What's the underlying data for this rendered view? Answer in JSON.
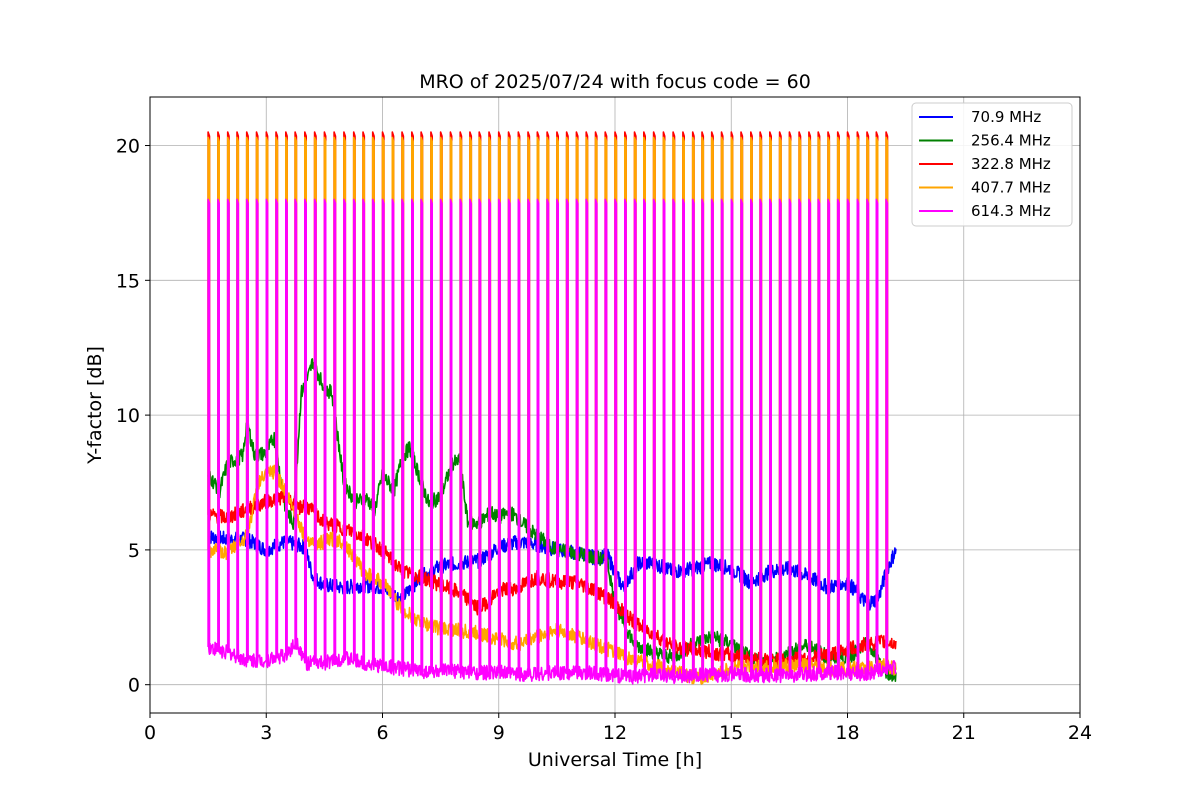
{
  "chart_data": {
    "type": "line",
    "title": "MRO of 2025/07/24 with focus code = 60",
    "xlabel": "Universal Time [h]",
    "ylabel": "Y-factor [dB]",
    "xlim": [
      0,
      24
    ],
    "ylim": [
      -1.05,
      21.8
    ],
    "xticks": [
      0,
      3,
      6,
      9,
      12,
      15,
      18,
      21,
      24
    ],
    "xtick_labels": [
      "0",
      "3",
      "6",
      "9",
      "12",
      "15",
      "18",
      "21",
      "24"
    ],
    "yticks": [
      0,
      5,
      10,
      15,
      20
    ],
    "ytick_labels": [
      "0",
      "5",
      "10",
      "15",
      "20"
    ],
    "grid": true,
    "legend_position": "top-right",
    "pulse_times": [
      1.5,
      1.75,
      2.0,
      2.25,
      2.5,
      2.75,
      3.0,
      3.25,
      3.5,
      3.75,
      4.0,
      4.25,
      4.5,
      4.75,
      5.0,
      5.25,
      5.5,
      5.75,
      6.0,
      6.25,
      6.5,
      6.75,
      7.0,
      7.25,
      7.5,
      7.75,
      8.0,
      8.25,
      8.5,
      8.75,
      9.0,
      9.25,
      9.5,
      9.75,
      10.0,
      10.25,
      10.5,
      10.75,
      11.0,
      11.25,
      11.5,
      11.75,
      12.0,
      12.25,
      12.5,
      12.75,
      13.0,
      13.25,
      13.5,
      13.75,
      14.0,
      14.25,
      14.5,
      14.75,
      15.0,
      15.25,
      15.5,
      15.75,
      16.0,
      16.25,
      16.5,
      16.75,
      17.0,
      17.25,
      17.5,
      17.75,
      18.0,
      18.25,
      18.5,
      18.75,
      19.0
    ],
    "series": [
      {
        "name": " 70.9 MHz",
        "color": "#0000ff",
        "baseline": {
          "x": [
            1.5,
            2.0,
            2.5,
            3.0,
            3.3,
            3.5,
            4.0,
            4.2,
            4.5,
            5.0,
            5.5,
            6.0,
            6.5,
            7.0,
            7.5,
            8.0,
            8.5,
            9.0,
            9.5,
            10.0,
            10.5,
            11.0,
            11.5,
            11.8,
            12.2,
            12.6,
            13.0,
            13.5,
            14.0,
            14.5,
            15.0,
            15.5,
            16.0,
            16.5,
            17.0,
            17.5,
            18.0,
            18.5,
            18.8,
            19.0,
            19.25
          ],
          "y": [
            5.5,
            5.4,
            5.4,
            5.0,
            5.2,
            5.3,
            5.1,
            4.0,
            3.7,
            3.6,
            3.7,
            3.6,
            3.2,
            4.0,
            4.4,
            4.5,
            4.6,
            5.1,
            5.3,
            5.2,
            5.0,
            4.9,
            4.7,
            4.8,
            3.6,
            4.5,
            4.5,
            4.2,
            4.3,
            4.5,
            4.3,
            3.8,
            4.2,
            4.3,
            4.0,
            3.6,
            3.8,
            3.0,
            3.2,
            4.2,
            5.0
          ]
        },
        "peak": null
      },
      {
        "name": "256.4 MHz",
        "color": "#008000",
        "baseline": {
          "x": [
            1.5,
            1.8,
            2.0,
            2.4,
            2.5,
            2.7,
            3.0,
            3.2,
            3.5,
            3.7,
            3.9,
            4.1,
            4.2,
            4.5,
            4.7,
            5.0,
            5.3,
            5.6,
            5.8,
            6.0,
            6.3,
            6.5,
            6.7,
            7.0,
            7.2,
            7.5,
            7.8,
            8.0,
            8.2,
            8.5,
            8.8,
            9.0,
            9.3,
            9.6,
            10.0,
            10.5,
            11.0,
            11.5,
            11.8,
            12.0,
            12.5,
            13.0,
            13.5,
            14.0,
            14.5,
            15.0,
            15.5,
            16.0,
            16.5,
            17.0,
            17.5,
            18.0,
            18.5,
            19.0,
            19.25
          ],
          "y": [
            7.8,
            7.2,
            8.2,
            8.5,
            9.8,
            8.5,
            8.6,
            9.2,
            6.5,
            6.0,
            10.8,
            11.5,
            12.0,
            11.0,
            10.8,
            7.5,
            6.8,
            6.9,
            6.5,
            7.8,
            7.2,
            8.4,
            8.8,
            7.5,
            6.7,
            7.0,
            8.2,
            8.3,
            6.0,
            6.0,
            6.4,
            6.2,
            6.4,
            6.0,
            5.5,
            5.0,
            4.9,
            4.7,
            4.6,
            3.0,
            1.5,
            1.2,
            1.0,
            1.5,
            1.8,
            1.5,
            1.0,
            0.8,
            1.2,
            1.5,
            1.0,
            1.0,
            1.5,
            0.5,
            0.3
          ]
        },
        "peak": null
      },
      {
        "name": "322.8 MHz",
        "color": "#ff0000",
        "baseline": {
          "x": [
            1.5,
            2.0,
            2.5,
            3.0,
            3.5,
            3.8,
            4.0,
            4.5,
            5.0,
            5.5,
            6.0,
            6.5,
            7.0,
            7.5,
            8.0,
            8.5,
            9.0,
            9.5,
            10.0,
            10.5,
            11.0,
            11.5,
            12.0,
            12.5,
            13.0,
            13.5,
            14.0,
            14.5,
            15.0,
            15.5,
            16.0,
            16.5,
            17.0,
            17.5,
            18.0,
            18.5,
            19.0,
            19.25
          ],
          "y": [
            6.3,
            6.2,
            6.5,
            6.8,
            7.0,
            6.5,
            6.7,
            6.0,
            5.8,
            5.5,
            5.0,
            4.2,
            4.0,
            3.7,
            3.4,
            2.8,
            3.5,
            3.6,
            4.0,
            3.8,
            3.8,
            3.5,
            3.0,
            2.3,
            1.9,
            1.4,
            1.3,
            1.2,
            1.1,
            1.0,
            0.9,
            0.9,
            1.0,
            1.1,
            1.3,
            1.5,
            1.6,
            1.5
          ]
        },
        "peak": 20.5
      },
      {
        "name": "407.7 MHz",
        "color": "#ffa500",
        "baseline": {
          "x": [
            1.5,
            2.0,
            2.5,
            2.8,
            3.0,
            3.2,
            3.5,
            4.0,
            4.3,
            4.7,
            5.0,
            5.5,
            6.0,
            6.5,
            7.0,
            7.5,
            8.0,
            8.5,
            9.0,
            9.5,
            10.0,
            10.5,
            11.0,
            11.5,
            12.0,
            12.5,
            13.0,
            13.5,
            14.0,
            14.5,
            15.0,
            15.5,
            16.0,
            16.5,
            17.0,
            17.5,
            18.0,
            18.5,
            19.0,
            19.25
          ],
          "y": [
            5.0,
            4.9,
            5.5,
            7.5,
            7.8,
            7.9,
            7.2,
            5.5,
            5.2,
            5.4,
            5.3,
            4.2,
            3.8,
            2.8,
            2.3,
            2.1,
            2.0,
            1.9,
            1.7,
            1.5,
            1.8,
            2.0,
            1.8,
            1.5,
            1.2,
            0.9,
            0.7,
            0.5,
            0.3,
            0.3,
            0.6,
            0.7,
            0.7,
            0.7,
            0.7,
            0.6,
            0.6,
            0.6,
            0.7,
            0.6
          ]
        },
        "peak": 20.3
      },
      {
        "name": "614.3 MHz",
        "color": "#ff00ff",
        "baseline": {
          "x": [
            1.5,
            2.0,
            2.5,
            3.0,
            3.5,
            3.8,
            4.0,
            4.5,
            5.0,
            5.5,
            6.0,
            6.5,
            7.0,
            7.5,
            8.0,
            8.5,
            9.0,
            9.5,
            10.0,
            10.5,
            11.0,
            11.5,
            12.0,
            12.5,
            13.0,
            13.5,
            14.0,
            14.5,
            15.0,
            15.5,
            16.0,
            16.5,
            17.0,
            17.5,
            18.0,
            18.5,
            19.0,
            19.25
          ],
          "y": [
            1.4,
            1.2,
            0.9,
            0.9,
            1.1,
            1.6,
            0.8,
            0.8,
            1.0,
            0.8,
            0.7,
            0.6,
            0.5,
            0.5,
            0.5,
            0.45,
            0.45,
            0.4,
            0.4,
            0.45,
            0.45,
            0.4,
            0.35,
            0.3,
            0.35,
            0.3,
            0.35,
            0.35,
            0.4,
            0.35,
            0.35,
            0.35,
            0.4,
            0.45,
            0.45,
            0.4,
            0.6,
            0.7
          ]
        },
        "peak": 18.0
      }
    ]
  }
}
